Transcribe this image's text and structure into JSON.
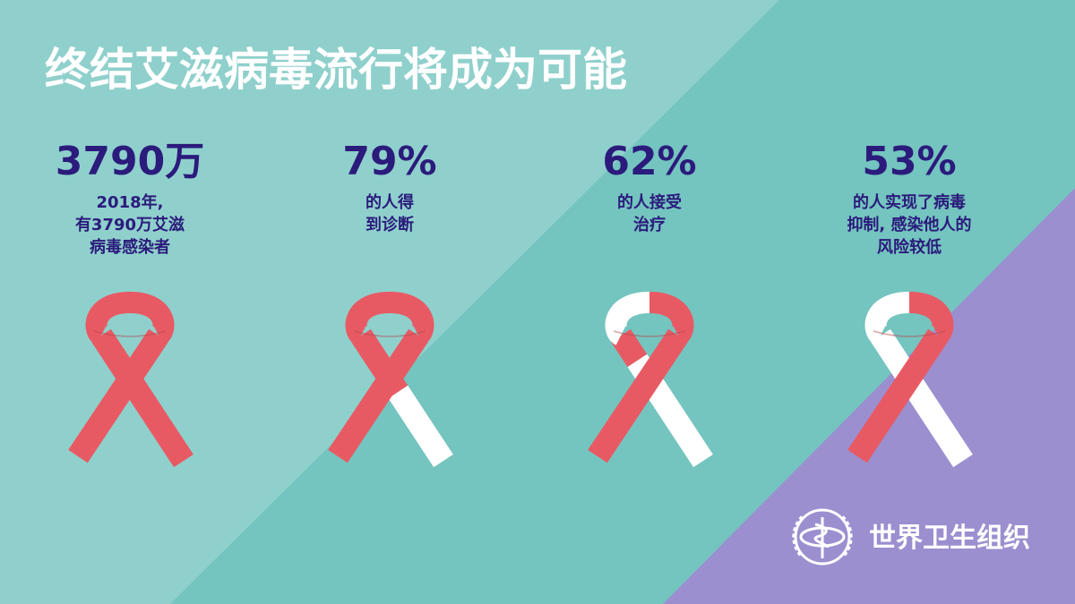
{
  "header": {
    "title": "终结艾滋病毒流行将成为可能"
  },
  "stats": [
    {
      "figure": "3790万",
      "description": [
        "2018年,",
        "有3790万艾滋",
        "病毒感染者"
      ]
    },
    {
      "figure": "79%",
      "description": [
        "的人得",
        "到诊断"
      ]
    },
    {
      "figure": "62%",
      "description": [
        "的人接受",
        "治疗"
      ]
    },
    {
      "figure": "53%",
      "description": [
        "的人实现了病毒",
        "抑制, 感染他人的",
        "风险较低"
      ]
    }
  ],
  "logo": {
    "text": "世界卫生组织"
  }
}
